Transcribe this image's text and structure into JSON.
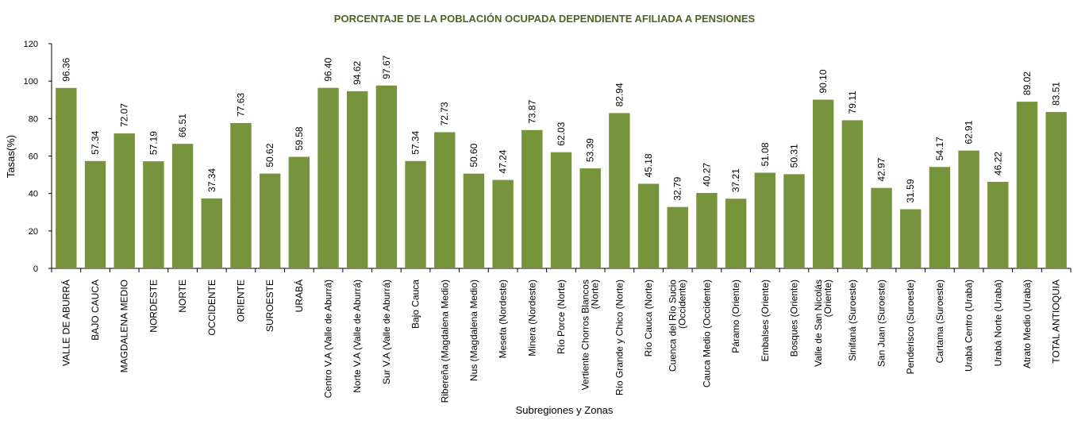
{
  "chart_data": {
    "type": "bar",
    "title": "PORCENTAJE DE LA POBLACIÓN OCUPADA DEPENDIENTE  AFILIADA A PENSIONES",
    "xlabel": "Subregiones y Zonas",
    "ylabel": "Tasas(%)",
    "ylim": [
      0,
      120
    ],
    "yticks": [
      0,
      20,
      40,
      60,
      80,
      100,
      120
    ],
    "grid": false,
    "bar_color": "#77933c",
    "categories": [
      [
        "VALLE DE ABURRÁ"
      ],
      [
        "BAJO CAUCA"
      ],
      [
        "MAGDALENA MEDIO"
      ],
      [
        "NORDESTE"
      ],
      [
        "NORTE"
      ],
      [
        "OCCIDENTE"
      ],
      [
        "ORIENTE"
      ],
      [
        "SUROESTE"
      ],
      [
        "URABÁ"
      ],
      [
        "Centro V.A (Valle de Aburrá)"
      ],
      [
        "Norte V.A (Valle de Aburrá)"
      ],
      [
        "Sur  V.A (Valle de Aburrá)"
      ],
      [
        "Bajo  Cauca"
      ],
      [
        "Ribereña  (Magdalena Medio)"
      ],
      [
        "Nus  (Magdalena Medio)"
      ],
      [
        "Meseta  (Nordeste)"
      ],
      [
        "Minera  (Nordeste)"
      ],
      [
        "Río Porce   (Norte)"
      ],
      [
        "Vertiente Chorros Blancos",
        "(Norte)"
      ],
      [
        "Río Grande y Chico  (Norte)"
      ],
      [
        "Río Cauca  (Norte)"
      ],
      [
        "Cuenca del Río Sucio",
        "(Occidente)"
      ],
      [
        "Cauca Medio  (Occidente)"
      ],
      [
        "Páramo  (Oriente)"
      ],
      [
        "Embalses (Oriente)"
      ],
      [
        "Bosques  (Oriente)"
      ],
      [
        "Valle de San Nicolás",
        "(Oriente)"
      ],
      [
        "Sinifaná  (Suroeste)"
      ],
      [
        "San Juan  (Suroeste)"
      ],
      [
        "Penderisco  (Suroeste)"
      ],
      [
        "Cartama  (Suroeste)"
      ],
      [
        "Urabá Centro  (Urabá)"
      ],
      [
        "Urabá Norte  (Urabá)"
      ],
      [
        "Atrato Medio  (Urabá)"
      ],
      [
        "TOTAL ANTIOQUIA"
      ]
    ],
    "values": [
      96.36,
      57.34,
      72.07,
      57.19,
      66.51,
      37.34,
      77.63,
      50.62,
      59.58,
      96.4,
      94.62,
      97.67,
      57.34,
      72.73,
      50.6,
      47.24,
      73.87,
      62.03,
      53.39,
      82.94,
      45.18,
      32.79,
      40.27,
      37.21,
      51.08,
      50.31,
      90.1,
      79.11,
      42.97,
      31.59,
      54.17,
      62.91,
      46.22,
      89.02,
      83.51
    ],
    "data_labels": [
      "96.36",
      "57.34",
      "72.07",
      "57.19",
      "66.51",
      "37.34",
      "77.63",
      "50.62",
      "59.58",
      "96.40",
      "94.62",
      "97.67",
      "57.34",
      "72.73",
      "50.60",
      "47.24",
      "73.87",
      "62.03",
      "53.39",
      "82.94",
      "45.18",
      "32.79",
      "40.27",
      "37.21",
      "51.08",
      "50.31",
      "90.10",
      "79.11",
      "42.97",
      "31.59",
      "54.17",
      "62.91",
      "46.22",
      "89.02",
      "83.51"
    ]
  }
}
